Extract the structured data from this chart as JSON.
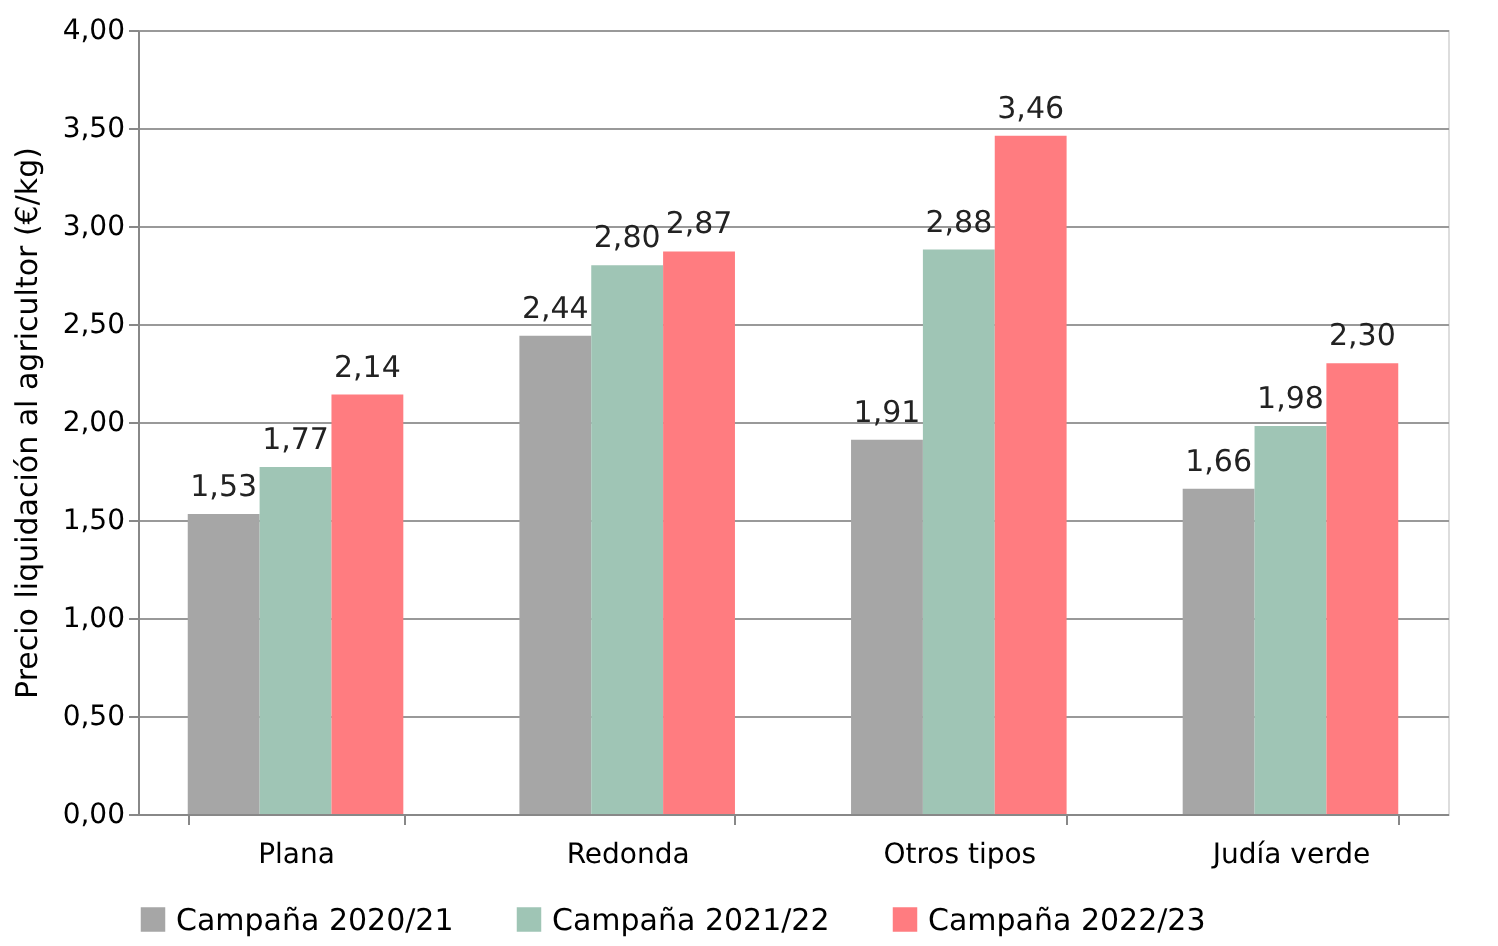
{
  "chart_data": {
    "type": "bar",
    "ylabel": "Precio liquidación al agricultor (€/kg)",
    "categories": [
      "Plana",
      "Redonda",
      "Otros tipos",
      "Judía verde"
    ],
    "series": [
      {
        "name": "Campaña 2020/21",
        "color": "#a6a6a6",
        "values": [
          1.53,
          2.44,
          1.91,
          1.66
        ],
        "value_labels": [
          "1,53",
          "2,44",
          "1,91",
          "1,66"
        ]
      },
      {
        "name": "Campaña 2021/22",
        "color": "#9fc5b5",
        "values": [
          1.77,
          2.8,
          2.88,
          1.98
        ],
        "value_labels": [
          "1,77",
          "2,80",
          "2,88",
          "1,98"
        ]
      },
      {
        "name": "Campaña 2022/23",
        "color": "#ff7c80",
        "values": [
          2.14,
          2.87,
          3.46,
          2.3
        ],
        "value_labels": [
          "2,14",
          "2,87",
          "3,46",
          "2,30"
        ]
      }
    ],
    "ylim": [
      0,
      4
    ],
    "yticks": [
      {
        "value": 0,
        "label": "0,00"
      },
      {
        "value": 0.5,
        "label": "0,50"
      },
      {
        "value": 1,
        "label": "1,00"
      },
      {
        "value": 1.5,
        "label": "1,50"
      },
      {
        "value": 2,
        "label": "2,00"
      },
      {
        "value": 2.5,
        "label": "2,50"
      },
      {
        "value": 3,
        "label": "3,00"
      },
      {
        "value": 3.5,
        "label": "3,50"
      },
      {
        "value": 4,
        "label": "4,00"
      }
    ],
    "grid": "y",
    "legend": "bottom"
  }
}
